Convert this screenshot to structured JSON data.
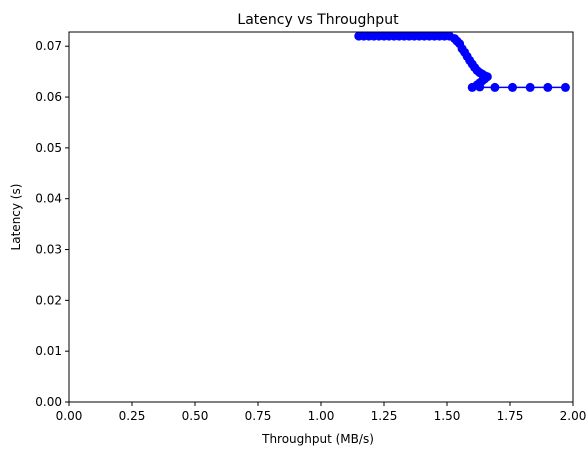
{
  "chart_data": {
    "type": "line",
    "title": "Latency vs Throughput",
    "xlabel": "Throughput (MB/s)",
    "ylabel": "Latency (s)",
    "xlim": [
      0.0,
      2.0
    ],
    "ylim": [
      0.0,
      0.0728
    ],
    "xticks": [
      "0.00",
      "0.25",
      "0.50",
      "0.75",
      "1.00",
      "1.25",
      "1.50",
      "1.75",
      "2.00"
    ],
    "yticks": [
      "0.00",
      "0.01",
      "0.02",
      "0.03",
      "0.04",
      "0.05",
      "0.06",
      "0.07"
    ],
    "grid": false,
    "legend": "none",
    "marker": "circle",
    "series": [
      {
        "color": "#0000ff",
        "x": [
          1.15,
          1.17,
          1.19,
          1.21,
          1.23,
          1.25,
          1.27,
          1.29,
          1.31,
          1.33,
          1.35,
          1.37,
          1.39,
          1.41,
          1.43,
          1.45,
          1.47,
          1.49,
          1.51,
          1.53,
          1.54,
          1.55,
          1.56,
          1.57,
          1.58,
          1.59,
          1.6,
          1.61,
          1.62,
          1.63,
          1.64,
          1.65,
          1.66,
          1.65,
          1.64,
          1.63,
          1.62,
          1.63,
          1.6,
          1.69,
          1.76,
          1.83,
          1.9,
          1.97
        ],
        "y": [
          0.072,
          0.072,
          0.072,
          0.072,
          0.072,
          0.072,
          0.072,
          0.072,
          0.072,
          0.072,
          0.072,
          0.072,
          0.072,
          0.072,
          0.072,
          0.072,
          0.072,
          0.072,
          0.072,
          0.0715,
          0.071,
          0.0705,
          0.0695,
          0.0688,
          0.068,
          0.0672,
          0.0665,
          0.0658,
          0.0652,
          0.0648,
          0.0645,
          0.0642,
          0.064,
          0.0636,
          0.0632,
          0.0628,
          0.0624,
          0.062,
          0.0619,
          0.0619,
          0.0619,
          0.0619,
          0.0619,
          0.0619
        ]
      }
    ]
  }
}
